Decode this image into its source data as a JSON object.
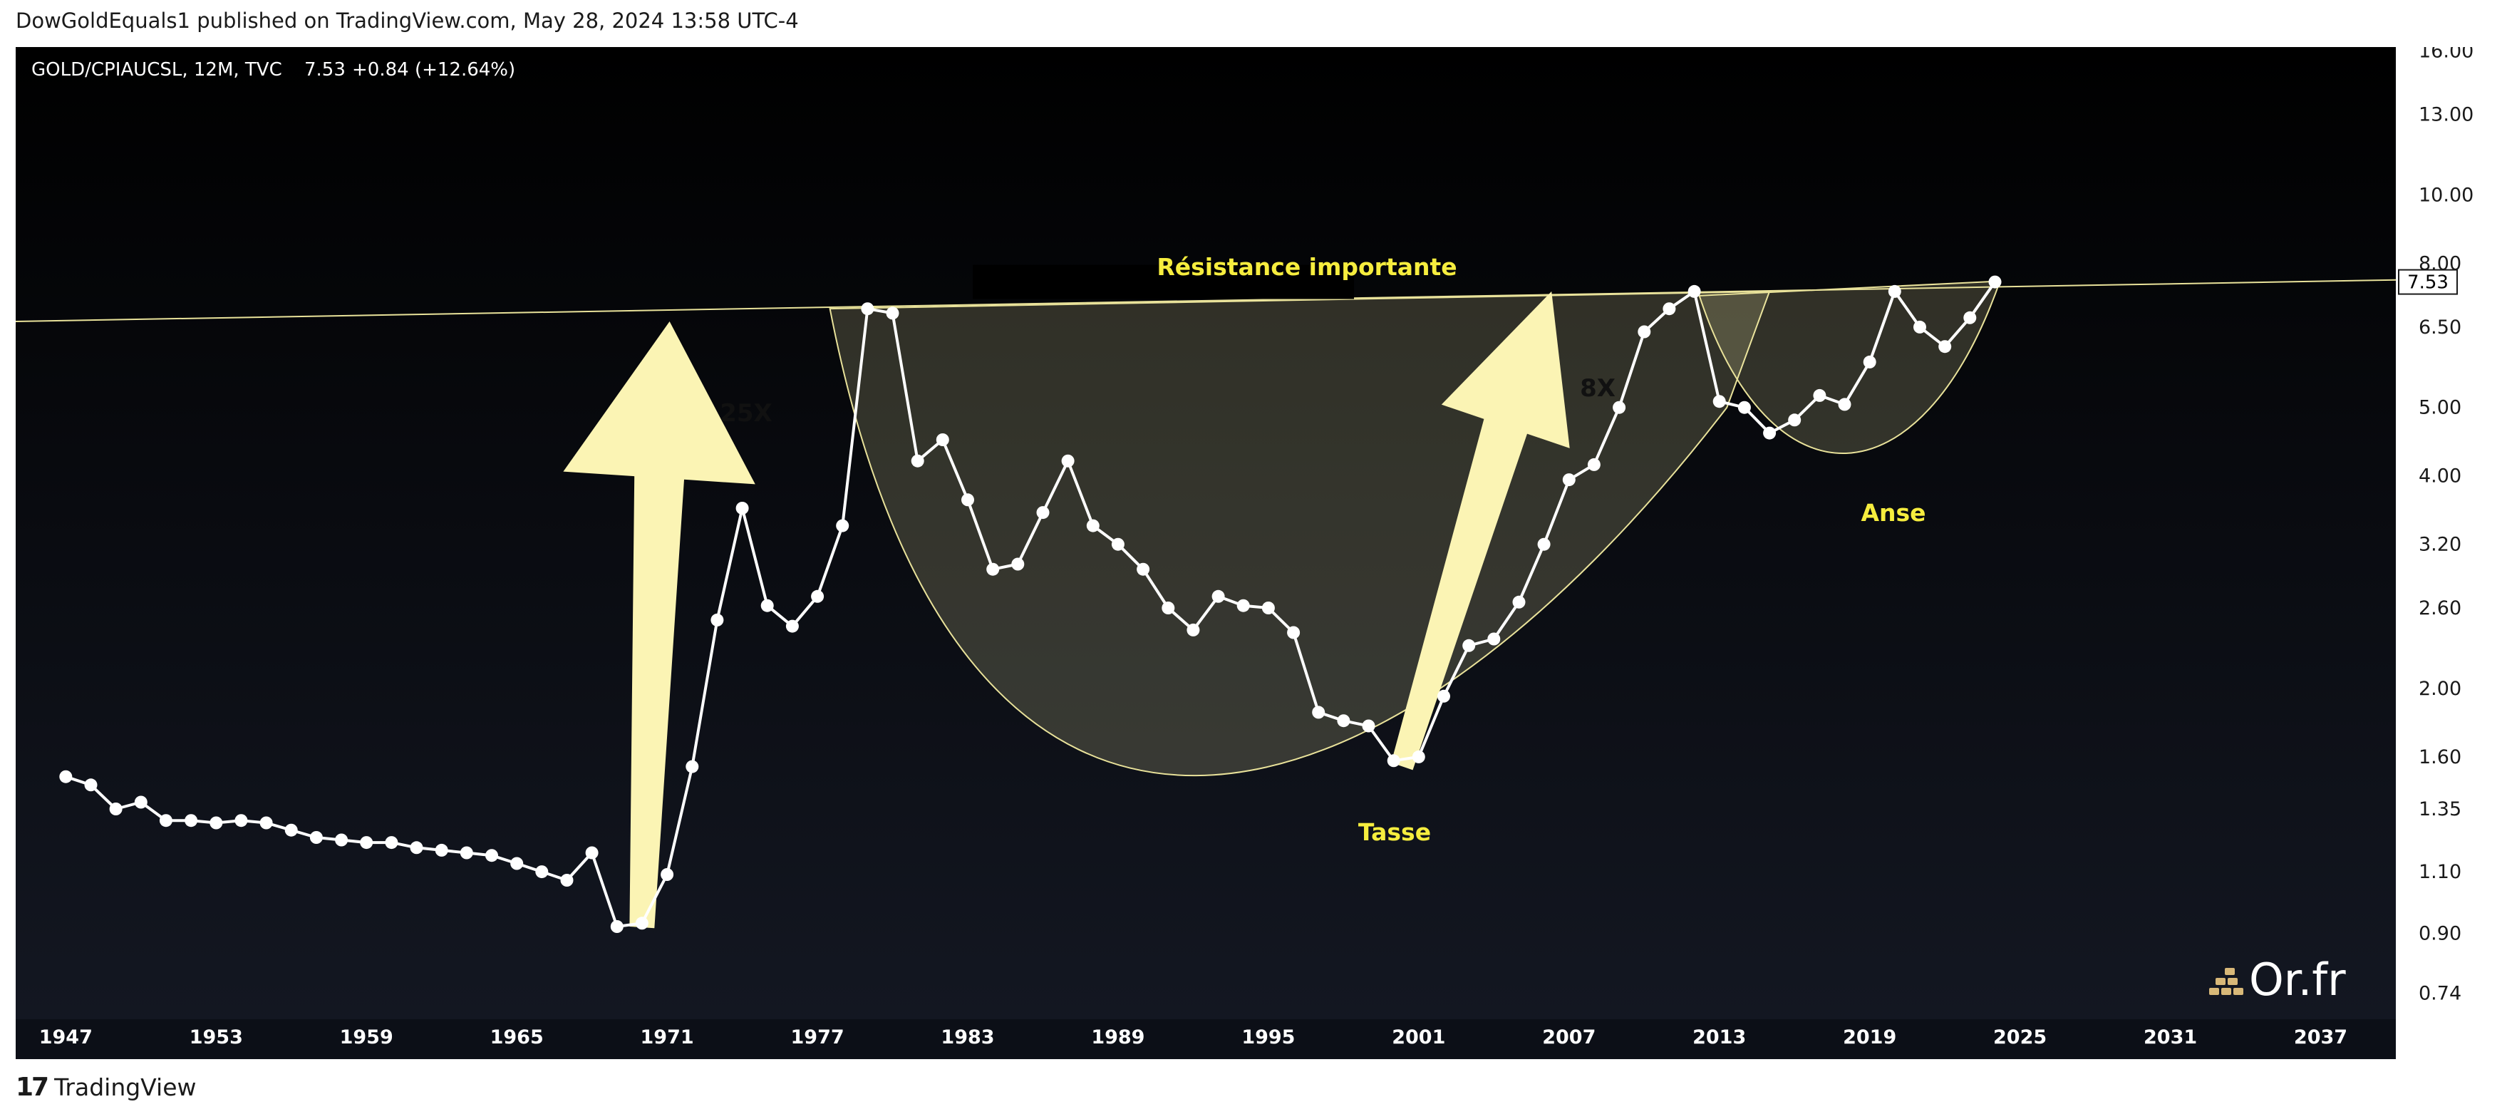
{
  "header": {
    "published_text": "DowGoldEquals1 published on TradingView.com, May 28, 2024 13:58 UTC-4"
  },
  "footer": {
    "brand_label": "TradingView"
  },
  "legend": {
    "symbol": "GOLD/CPIAUCSL, 12M, TVC",
    "last": "7.53",
    "change": "+0.84 (+12.64%)"
  },
  "watermark": {
    "text": "Or.fr"
  },
  "colors": {
    "background_top": "#000000",
    "background_bottom": "#141823",
    "line": "#ffffff",
    "highlight_yellow": "#f6ed3e",
    "arrow_fill": "#fbf4b4",
    "cup_fill": "#fbf4b4",
    "resistance_line": "#e9e29a"
  },
  "chart_data": {
    "type": "line",
    "title": "GOLD/CPIAUCSL, 12M, TVC",
    "y_scale": "log",
    "ylim": [
      0.68,
      16.2
    ],
    "xlim": [
      1945,
      2040
    ],
    "x_ticks": [
      "1947",
      "1953",
      "1959",
      "1965",
      "1971",
      "1977",
      "1983",
      "1989",
      "1995",
      "2001",
      "2007",
      "2013",
      "2019",
      "2025",
      "2031",
      "2037"
    ],
    "y_ticks": [
      "16.00",
      "13.00",
      "10.00",
      "8.00",
      "6.50",
      "5.00",
      "4.00",
      "3.20",
      "2.60",
      "2.00",
      "1.60",
      "1.35",
      "1.10",
      "0.90",
      "0.74"
    ],
    "last_value_label": "7.53",
    "series": [
      {
        "x": [
          1947,
          1948,
          1949,
          1950,
          1951,
          1952,
          1953,
          1954,
          1955,
          1956,
          1957,
          1958,
          1959,
          1960,
          1961,
          1962,
          1963,
          1964,
          1965,
          1966,
          1967,
          1968,
          1969,
          1970,
          1971,
          1972,
          1973,
          1974,
          1975,
          1976,
          1977,
          1978,
          1979,
          1980,
          1981,
          1982,
          1983,
          1984,
          1985,
          1986,
          1987,
          1988,
          1989,
          1990,
          1991,
          1992,
          1993,
          1994,
          1995,
          1996,
          1997,
          1998,
          1999,
          2000,
          2001,
          2002,
          2003,
          2004,
          2005,
          2006,
          2007,
          2008,
          2009,
          2010,
          2011,
          2012,
          2013,
          2014,
          2015,
          2016,
          2017,
          2018,
          2019,
          2020,
          2021,
          2022,
          2023,
          2024
        ],
        "values": [
          1.5,
          1.46,
          1.35,
          1.38,
          1.3,
          1.3,
          1.29,
          1.3,
          1.29,
          1.26,
          1.23,
          1.22,
          1.21,
          1.21,
          1.19,
          1.18,
          1.17,
          1.16,
          1.13,
          1.1,
          1.07,
          1.17,
          0.92,
          0.93,
          1.09,
          1.55,
          2.5,
          3.6,
          2.62,
          2.45,
          2.7,
          3.4,
          6.9,
          6.8,
          4.2,
          4.5,
          3.7,
          2.95,
          3.0,
          3.55,
          4.2,
          3.4,
          3.2,
          2.95,
          2.6,
          2.42,
          2.7,
          2.62,
          2.6,
          2.4,
          1.85,
          1.8,
          1.77,
          1.58,
          1.6,
          1.95,
          2.3,
          2.35,
          2.65,
          3.2,
          3.95,
          4.15,
          5.0,
          6.4,
          6.9,
          7.3,
          5.1,
          5.0,
          4.6,
          4.8,
          5.2,
          5.05,
          5.8,
          7.3,
          6.5,
          6.1,
          6.7,
          7.53
        ]
      }
    ],
    "annotations": {
      "resistance_label": "Résistance importante",
      "arrow_1_label": "25X",
      "arrow_2_label": "8X",
      "cup_label": "Tasse",
      "handle_label": "Anse"
    }
  }
}
